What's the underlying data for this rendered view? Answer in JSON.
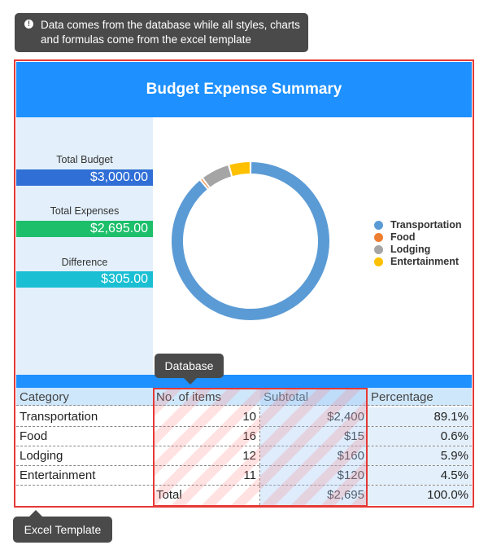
{
  "tooltips": {
    "top": "Data comes from the database while all styles, charts and formulas come from the excel template",
    "database": "Database",
    "excel_template": "Excel Template"
  },
  "header": {
    "title": "Budget Expense Summary"
  },
  "summary": {
    "total_budget_label": "Total Budget",
    "total_budget_value": "$3,000.00",
    "total_expenses_label": "Total Expenses",
    "total_expenses_value": "$2,695.00",
    "difference_label": "Difference",
    "difference_value": "$305.00"
  },
  "colors": {
    "header": "#1e90ff",
    "budget": "#2f6fd6",
    "expenses": "#1dbf6b",
    "difference": "#1bbfd3",
    "highlight_border": "#e53935"
  },
  "table": {
    "headers": [
      "Category",
      "No. of items",
      "Subtotal",
      "Percentage"
    ],
    "rows": [
      [
        "Transportation",
        "10",
        "$2,400",
        "89.1%"
      ],
      [
        "Food",
        "16",
        "$15",
        "0.6%"
      ],
      [
        "Lodging",
        "12",
        "$160",
        "5.9%"
      ],
      [
        "Entertainment",
        "11",
        "$120",
        "4.5%"
      ]
    ],
    "total": [
      "",
      "Total",
      "$2,695",
      "100.0%"
    ]
  },
  "chart_data": {
    "type": "pie",
    "title": "",
    "categories": [
      "Transportation",
      "Food",
      "Lodging",
      "Entertainment"
    ],
    "values": [
      2400,
      15,
      160,
      120
    ],
    "colors": [
      "#5b9bd5",
      "#ed7d31",
      "#a5a5a5",
      "#ffc000"
    ],
    "donut": true,
    "legend_position": "right"
  }
}
